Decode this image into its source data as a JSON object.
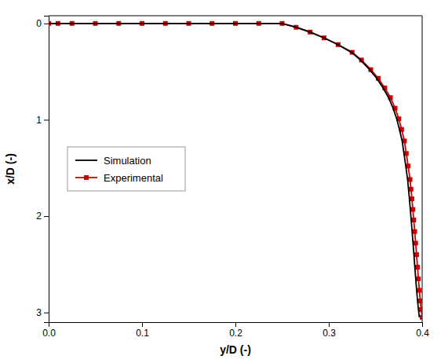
{
  "chart_data": {
    "type": "line",
    "xlabel": "y/D (-)",
    "ylabel": "x/D (-)",
    "xlim": [
      0,
      0.4
    ],
    "ylim": [
      3.1,
      -0.08
    ],
    "xticks": [
      {
        "value": 0,
        "label": "0.0"
      },
      0.1,
      0.2,
      0.3,
      0.4
    ],
    "yticks": [
      0,
      1,
      2,
      3
    ],
    "grid": false,
    "legend": "left",
    "series": [
      {
        "name": "Simulation",
        "color": "#000000",
        "marker": "none",
        "line_style": "solid",
        "x": [
          0.0,
          0.01,
          0.025,
          0.05,
          0.075,
          0.1,
          0.125,
          0.15,
          0.175,
          0.2,
          0.225,
          0.25,
          0.265,
          0.28,
          0.295,
          0.3097,
          0.32425,
          0.33395,
          0.34365,
          0.35141,
          0.3582,
          0.36402,
          0.36887,
          0.37275,
          0.37566,
          0.37857,
          0.38051,
          0.38245,
          0.38439,
          0.38536,
          0.38633,
          0.3873,
          0.38827,
          0.38924,
          0.39021,
          0.39118,
          0.39215,
          0.39312,
          0.39409,
          0.39506,
          0.39603,
          0.397
        ],
        "values": [
          0.0,
          0.0,
          0.0,
          0.0,
          0.0,
          0.0,
          0.0,
          0.0,
          0.0,
          0.0,
          0.0,
          0.0,
          0.04,
          0.09,
          0.15,
          0.22,
          0.3,
          0.38,
          0.48,
          0.57,
          0.67,
          0.77,
          0.88,
          0.99,
          1.1,
          1.22,
          1.35,
          1.48,
          1.62,
          1.72,
          1.82,
          1.93,
          2.04,
          2.16,
          2.28,
          2.4,
          2.53,
          2.65,
          2.77,
          2.88,
          2.97,
          3.05
        ]
      },
      {
        "name": "Experimental",
        "color": "#cc0000",
        "marker": "square",
        "line_style": "solid",
        "x": [
          0.0,
          0.01,
          0.025,
          0.05,
          0.075,
          0.1,
          0.125,
          0.15,
          0.175,
          0.2,
          0.225,
          0.25,
          0.265,
          0.28,
          0.295,
          0.31,
          0.325,
          0.335,
          0.345,
          0.353,
          0.36,
          0.366,
          0.371,
          0.375,
          0.378,
          0.381,
          0.383,
          0.385,
          0.387,
          0.388,
          0.389,
          0.39,
          0.391,
          0.392,
          0.393,
          0.394,
          0.395,
          0.396,
          0.397,
          0.398,
          0.399,
          0.4
        ],
        "values": [
          0.0,
          0.0,
          0.0,
          0.0,
          0.0,
          0.0,
          0.0,
          0.0,
          0.0,
          0.0,
          0.0,
          0.0,
          0.04,
          0.09,
          0.15,
          0.22,
          0.3,
          0.38,
          0.48,
          0.57,
          0.67,
          0.77,
          0.88,
          0.99,
          1.1,
          1.22,
          1.35,
          1.48,
          1.62,
          1.72,
          1.82,
          1.93,
          2.04,
          2.16,
          2.28,
          2.4,
          2.53,
          2.65,
          2.77,
          2.88,
          2.97,
          3.05
        ]
      }
    ]
  }
}
